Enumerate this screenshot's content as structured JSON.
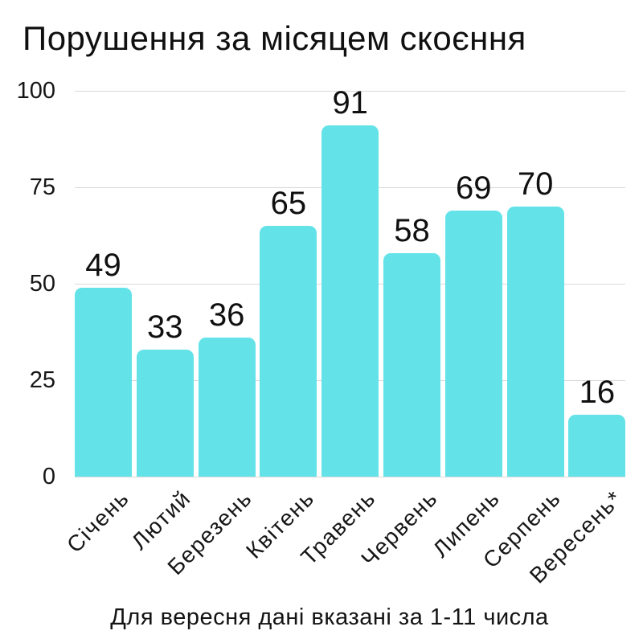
{
  "chart_data": {
    "type": "bar",
    "title": "Порушення за місяцем скоєння",
    "categories": [
      "Січень",
      "Лютий",
      "Березень",
      "Квітень",
      "Травень",
      "Червень",
      "Липень",
      "Серпень",
      "Вересень*"
    ],
    "values": [
      49,
      33,
      36,
      65,
      91,
      58,
      69,
      70,
      16
    ],
    "y_ticks": [
      0,
      25,
      50,
      75,
      100
    ],
    "ylim": [
      0,
      100
    ],
    "xlabel": "",
    "ylabel": "",
    "footnote": "Для вересня дані вказані за 1-11 числа",
    "grid": true,
    "legend": false,
    "value_labels": true,
    "x_tick_rotation_deg": -45,
    "colors": {
      "bar": "#63E3E8",
      "gridline": "#d9d9d9",
      "text": "#101010",
      "background": "#ffffff"
    }
  }
}
